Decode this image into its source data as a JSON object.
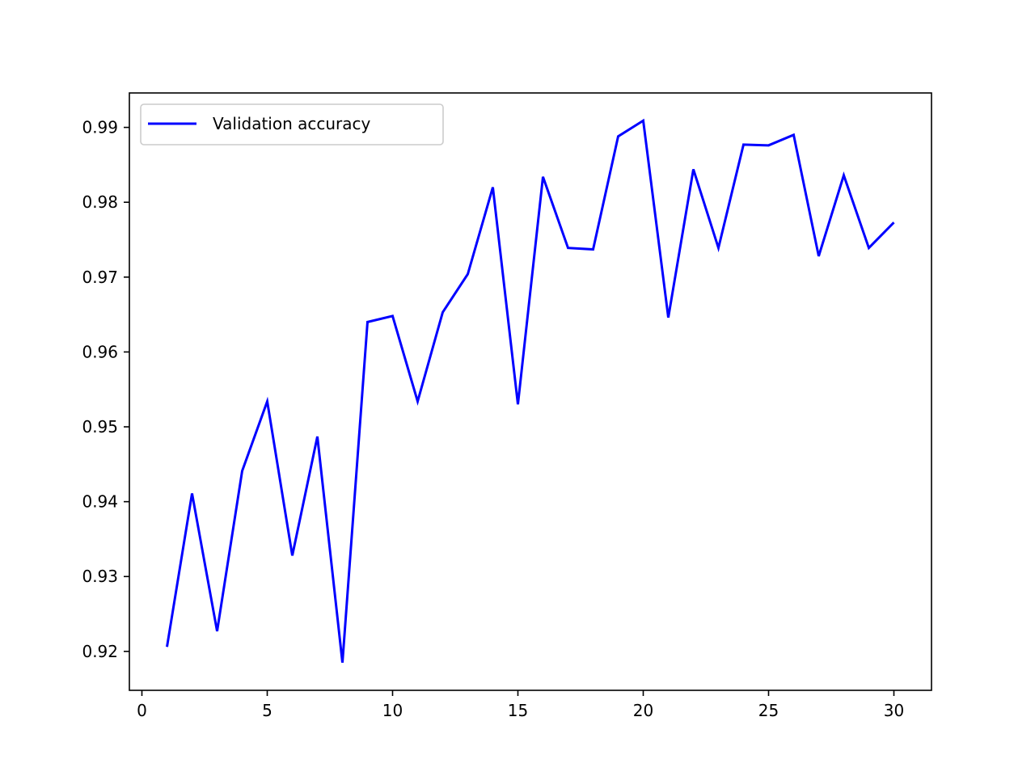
{
  "chart_data": {
    "type": "line",
    "title": "",
    "xlabel": "",
    "ylabel": "",
    "xlim": [
      -0.5,
      31.5
    ],
    "ylim": [
      0.9148,
      0.9946
    ],
    "xticks": [
      0,
      5,
      10,
      15,
      20,
      25,
      30
    ],
    "xtick_labels": [
      "0",
      "5",
      "10",
      "15",
      "20",
      "25",
      "30"
    ],
    "yticks": [
      0.92,
      0.93,
      0.94,
      0.95,
      0.96,
      0.97,
      0.98,
      0.99
    ],
    "ytick_labels": [
      "0.92",
      "0.93",
      "0.94",
      "0.95",
      "0.96",
      "0.97",
      "0.98",
      "0.99"
    ],
    "grid": false,
    "legend_position": "top-left",
    "x": [
      1,
      2,
      3,
      4,
      5,
      6,
      7,
      8,
      9,
      10,
      11,
      12,
      13,
      14,
      15,
      16,
      17,
      18,
      19,
      20,
      21,
      22,
      23,
      24,
      25,
      26,
      27,
      28,
      29,
      30
    ],
    "series": [
      {
        "name": "Validation accuracy",
        "color": "#0000ff",
        "values": [
          0.9206,
          0.9411,
          0.9227,
          0.9441,
          0.9534,
          0.9328,
          0.9487,
          0.9185,
          0.964,
          0.9648,
          0.9534,
          0.9653,
          0.9704,
          0.982,
          0.953,
          0.9834,
          0.9739,
          0.9737,
          0.9888,
          0.9909,
          0.9646,
          0.9844,
          0.9739,
          0.9877,
          0.9876,
          0.989,
          0.9728,
          0.9836,
          0.9739,
          0.9773
        ]
      }
    ]
  }
}
